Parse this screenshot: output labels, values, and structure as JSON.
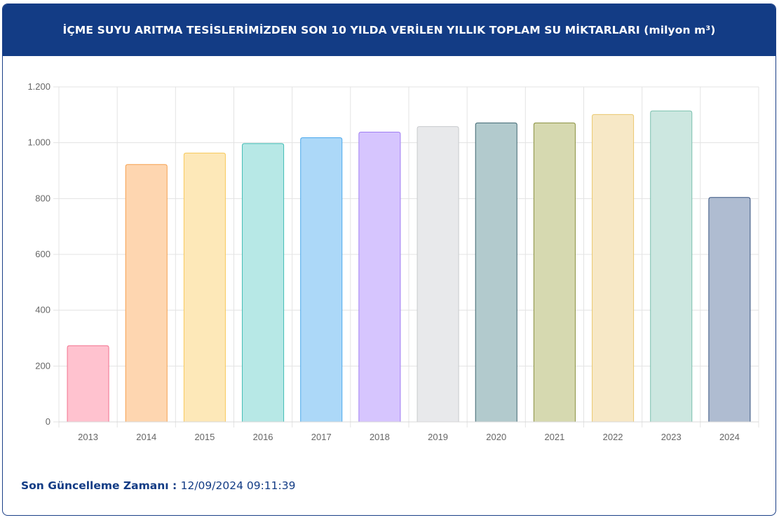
{
  "panel": {
    "title": "İÇME SUYU ARITMA TESİSLERİMİZDEN SON 10 YILDA VERİLEN YILLIK TOPLAM SU MİKTARLARI (milyon m³)",
    "footer_label": "Son Güncelleme Zamanı",
    "footer_sep": " : ",
    "footer_value": "12/09/2024 09:11:39",
    "header_color": "#133c85"
  },
  "chart_data": {
    "type": "bar",
    "title": "",
    "xlabel": "",
    "ylabel": "",
    "ylim": [
      0,
      1200
    ],
    "yticks": [
      0,
      200,
      400,
      600,
      800,
      1000,
      1200
    ],
    "ytick_labels": [
      "0",
      "200",
      "400",
      "600",
      "800",
      "1.000",
      "1.200"
    ],
    "grid": true,
    "categories": [
      "2013",
      "2014",
      "2015",
      "2016",
      "2017",
      "2018",
      "2019",
      "2020",
      "2021",
      "2022",
      "2023",
      "2024"
    ],
    "values": [
      273,
      922,
      963,
      997,
      1018,
      1038,
      1058,
      1071,
      1071,
      1101,
      1114,
      804
    ],
    "fills": [
      "#ffc2cf",
      "#fed6b0",
      "#fde8b8",
      "#b7e8e6",
      "#acd8f8",
      "#d6c5fe",
      "#e8e9eb",
      "#b2cacd",
      "#d6d9b0",
      "#f7e8c6",
      "#cce7e0",
      "#afbcd1"
    ],
    "strokes": [
      "#f2728f",
      "#f5a04e",
      "#f7c95b",
      "#3fbcb5",
      "#4aa8ec",
      "#a07df2",
      "#c8cacd",
      "#3e6670",
      "#8a9140",
      "#ebc86f",
      "#79c0ae",
      "#34507e"
    ]
  }
}
